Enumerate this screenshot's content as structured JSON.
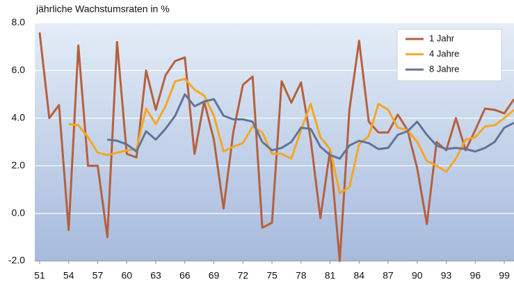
{
  "chart_data": {
    "type": "line",
    "title": "jährliche Wachstumsraten in %",
    "x": [
      51,
      52,
      53,
      54,
      55,
      56,
      57,
      58,
      59,
      60,
      61,
      62,
      63,
      64,
      65,
      66,
      67,
      68,
      69,
      70,
      71,
      72,
      73,
      74,
      75,
      76,
      77,
      78,
      79,
      80,
      81,
      82,
      83,
      84,
      85,
      86,
      87,
      88,
      89,
      90,
      91,
      92,
      93,
      94,
      95,
      96,
      97,
      98,
      99,
      100
    ],
    "series": [
      {
        "name": "1 Jahr",
        "color": "#b5603c",
        "values": [
          7.6,
          4.0,
          4.55,
          -0.7,
          7.05,
          2.0,
          2.0,
          -1.0,
          7.2,
          2.5,
          2.35,
          6.0,
          4.35,
          5.8,
          6.4,
          6.55,
          2.5,
          4.7,
          3.1,
          0.2,
          3.4,
          5.4,
          5.75,
          -0.6,
          -0.4,
          5.55,
          4.65,
          5.5,
          3.1,
          -0.2,
          2.65,
          -2.0,
          4.35,
          7.25,
          3.85,
          3.4,
          3.4,
          4.15,
          3.5,
          1.9,
          -0.45,
          3.0,
          2.65,
          4.0,
          2.65,
          3.5,
          4.4,
          4.35,
          4.2,
          4.8
        ]
      },
      {
        "name": "4 Jahre",
        "color": "#f5a623",
        "values": [
          null,
          null,
          null,
          3.75,
          3.7,
          3.2,
          2.55,
          2.45,
          2.55,
          2.65,
          2.7,
          4.4,
          3.75,
          4.5,
          5.55,
          5.65,
          5.2,
          4.95,
          4.1,
          2.6,
          2.8,
          2.95,
          3.65,
          3.4,
          2.5,
          2.5,
          2.3,
          3.5,
          4.6,
          3.2,
          2.7,
          0.85,
          1.1,
          2.9,
          3.25,
          4.6,
          4.35,
          3.6,
          3.5,
          3.0,
          2.2,
          2.0,
          1.75,
          2.3,
          3.1,
          3.2,
          3.65,
          3.7,
          4.0,
          4.35
        ]
      },
      {
        "name": "8 Jahre",
        "color": "#5f7497",
        "values": [
          null,
          null,
          null,
          null,
          null,
          null,
          null,
          3.1,
          3.05,
          2.9,
          2.6,
          3.45,
          3.1,
          3.55,
          4.1,
          5.0,
          4.5,
          4.7,
          4.8,
          4.1,
          3.95,
          3.95,
          3.85,
          3.0,
          2.65,
          2.75,
          3.0,
          3.6,
          3.55,
          2.8,
          2.45,
          2.3,
          2.85,
          3.05,
          2.95,
          2.7,
          2.75,
          3.3,
          3.45,
          3.85,
          3.3,
          2.85,
          2.7,
          2.75,
          2.7,
          2.6,
          2.75,
          3.0,
          3.6,
          3.8
        ]
      }
    ],
    "xlim": [
      50.5,
      100
    ],
    "xticks": [
      51,
      54,
      57,
      60,
      63,
      66,
      69,
      72,
      75,
      78,
      81,
      84,
      87,
      90,
      93,
      96,
      99
    ],
    "ylim": [
      -2,
      8
    ],
    "yticks": [
      {
        "value": -2,
        "label": "-2.0"
      },
      {
        "value": 0,
        "label": "0.0"
      },
      {
        "value": 2,
        "label": "2.0"
      },
      {
        "value": 4,
        "label": "4.0"
      },
      {
        "value": 6,
        "label": "6.0"
      },
      {
        "value": 8,
        "label": "8.0"
      }
    ],
    "grid": true,
    "legend": "top-right"
  }
}
